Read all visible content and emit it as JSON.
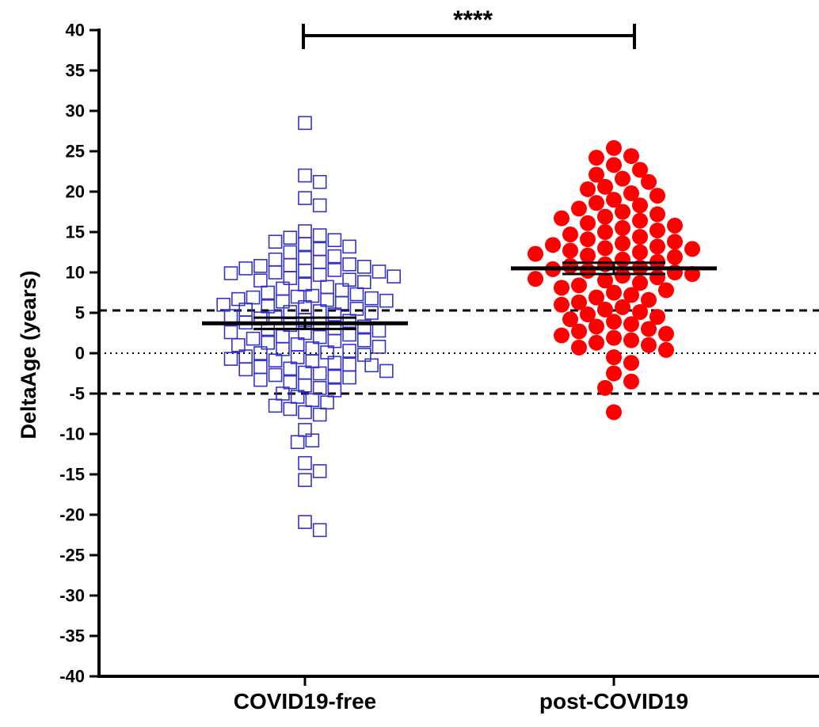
{
  "chart_data": {
    "type": "scatter",
    "title": "",
    "xlabel": "",
    "ylabel": "DeltaAge (years)",
    "ylim": [
      -40,
      40
    ],
    "yticks": [
      40,
      35,
      30,
      25,
      20,
      15,
      10,
      5,
      0,
      -5,
      -10,
      -15,
      -20,
      -25,
      -30,
      -35,
      -40
    ],
    "categories": [
      "COVID19-free",
      "post-COVID19"
    ],
    "reference_lines": [
      {
        "y": 5.3,
        "style": "dashed"
      },
      {
        "y": 0,
        "style": "dotted"
      },
      {
        "y": -5,
        "style": "dashed"
      }
    ],
    "significance": {
      "label": "****",
      "between": [
        "COVID19-free",
        "post-COVID19"
      ]
    },
    "series": [
      {
        "category": "COVID19-free",
        "marker": "open-square",
        "color": "#3333cc",
        "mean": 3.7,
        "sem": 0.7,
        "values": [
          28.5,
          22,
          21.2,
          19.2,
          18.3,
          15.1,
          14.6,
          14.3,
          14.0,
          13.8,
          13.5,
          13.2,
          12.9,
          12.5,
          12.0,
          11.8,
          11.6,
          11.3,
          11.0,
          10.9,
          10.8,
          10.7,
          10.5,
          10.3,
          10.2,
          10.1,
          10.0,
          9.9,
          9.7,
          9.5,
          9.3,
          9.1,
          9.0,
          8.8,
          8.5,
          8.2,
          8.0,
          7.8,
          7.5,
          7.3,
          7.1,
          7.0,
          6.9,
          6.8,
          6.7,
          6.6,
          6.5,
          6.4,
          6.2,
          6.0,
          5.8,
          5.7,
          5.5,
          5.4,
          5.2,
          5.1,
          5.0,
          4.8,
          4.6,
          4.5,
          4.3,
          4.1,
          4.0,
          3.8,
          3.6,
          3.5,
          3.3,
          3.1,
          3.0,
          2.8,
          2.6,
          2.5,
          2.3,
          2.1,
          2.0,
          1.8,
          1.6,
          1.5,
          1.3,
          1.1,
          1.0,
          0.8,
          0.6,
          0.5,
          0.3,
          0.1,
          0.0,
          -0.2,
          -0.4,
          -0.5,
          -0.7,
          -0.9,
          -1.0,
          -1.2,
          -1.4,
          -1.5,
          -1.7,
          -1.9,
          -2.0,
          -2.2,
          -2.4,
          -2.5,
          -2.7,
          -2.9,
          -3.0,
          -3.3,
          -3.6,
          -4.0,
          -4.3,
          -4.6,
          -5.0,
          -5.4,
          -5.8,
          -6.1,
          -6.5,
          -6.9,
          -7.3,
          -7.6,
          -9.5,
          -10.8,
          -11.0,
          -13.6,
          -14.6,
          -15.7,
          -20.9,
          -21.9
        ]
      },
      {
        "category": "post-COVID19",
        "marker": "filled-circle",
        "color": "#ff0000",
        "mean": 10.5,
        "sem": 0.7,
        "values": [
          25.4,
          24.4,
          24.2,
          23.3,
          22.7,
          22.1,
          21.6,
          21.2,
          20.6,
          20.3,
          19.8,
          19.5,
          19.0,
          18.6,
          18.3,
          17.9,
          17.5,
          17.2,
          16.9,
          16.7,
          16.4,
          16.1,
          15.8,
          15.5,
          15.2,
          15.0,
          14.7,
          14.4,
          14.1,
          13.8,
          13.6,
          13.4,
          13.2,
          13.0,
          12.9,
          12.7,
          12.5,
          12.3,
          12.1,
          11.9,
          11.6,
          11.3,
          11.0,
          10.8,
          10.6,
          10.4,
          10.2,
          10.0,
          9.8,
          9.6,
          9.4,
          9.2,
          9.0,
          8.7,
          8.4,
          8.1,
          7.8,
          7.5,
          7.2,
          6.9,
          6.6,
          6.3,
          6.0,
          5.7,
          5.4,
          5.1,
          4.8,
          4.5,
          4.2,
          3.9,
          3.6,
          3.3,
          3.0,
          2.7,
          2.4,
          2.2,
          1.9,
          1.6,
          1.3,
          1.0,
          0.7,
          0.4,
          -0.5,
          -1.2,
          -2.5,
          -3.5,
          -4.3,
          -7.3
        ]
      }
    ]
  }
}
